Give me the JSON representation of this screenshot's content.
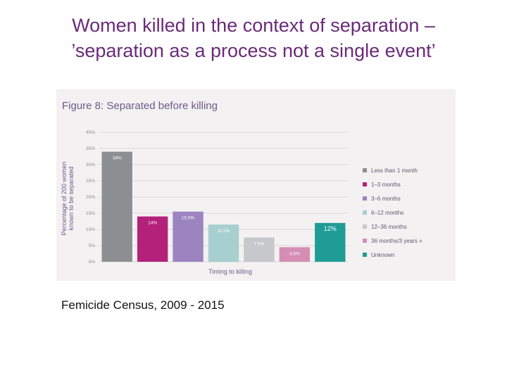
{
  "slide": {
    "title_line1": "Women killed in the context of separation –",
    "title_line2": "’separation as a process not a single event’",
    "caption": "Femicide Census, 2009 - 2015"
  },
  "chart_data": {
    "type": "bar",
    "title": "Figure 8: Separated before killing",
    "xlabel": "Timing to killing",
    "ylabel": [
      "Percentage of 200 women",
      "known to be separated"
    ],
    "ylim": [
      0,
      40
    ],
    "yticks": [
      0,
      5,
      10,
      15,
      20,
      25,
      30,
      35,
      40
    ],
    "ytick_labels": [
      "0%",
      "5%",
      "10%",
      "15%",
      "20%",
      "25%",
      "30%",
      "35%",
      "40%"
    ],
    "grid": true,
    "legend_position": "right",
    "categories": [
      "Less than 1 month",
      "1–3 months",
      "3–6 months",
      "6–12 months",
      "12–36 months",
      "36 months/3 years +",
      "Unknown"
    ],
    "values": [
      34,
      14,
      15.5,
      11.5,
      7.5,
      4.5,
      12
    ],
    "data_labels": [
      "34%",
      "14%",
      "15.5%",
      "11.5%",
      "7.5%",
      "4.5%",
      "12%"
    ],
    "colors": [
      "#8d8e92",
      "#b3217a",
      "#9b84bf",
      "#a7cfd0",
      "#c7c8ca",
      "#d58db4",
      "#1f9c96"
    ]
  }
}
